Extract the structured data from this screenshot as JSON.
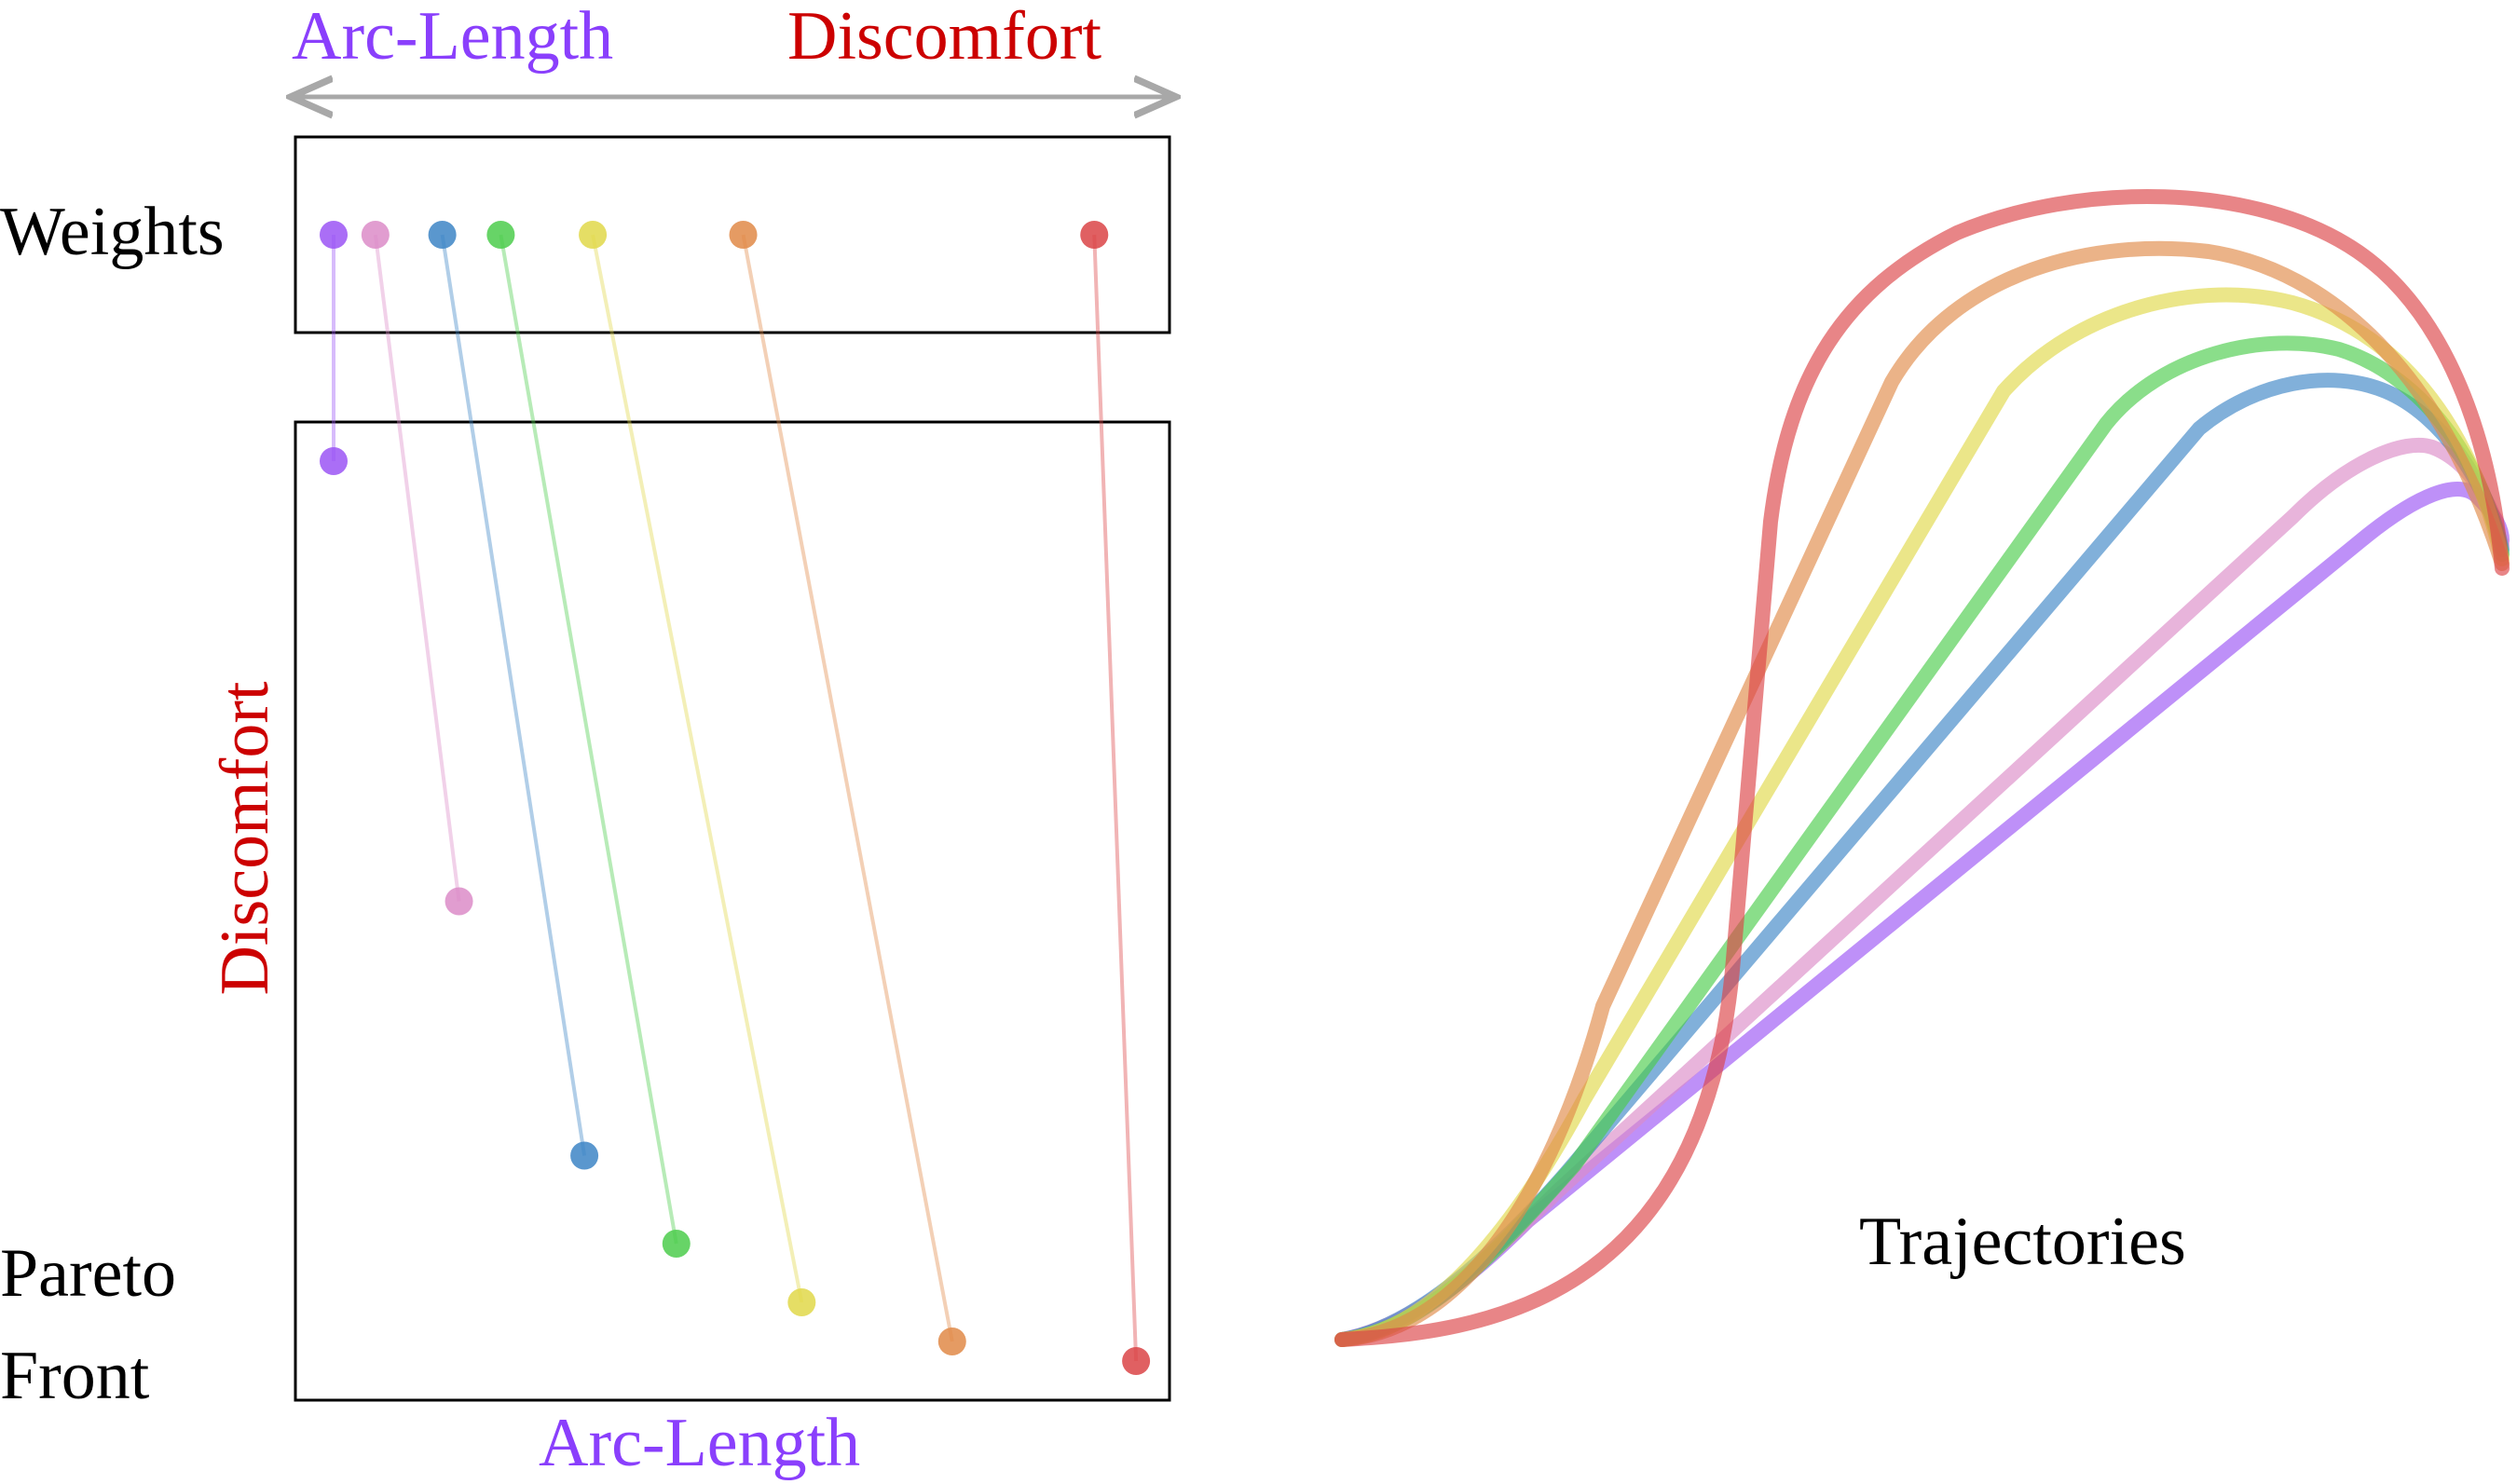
{
  "labels": {
    "top_left_axis": "Arc-Length",
    "top_right_axis": "Discomfort",
    "weights": "Weights",
    "pareto_line1": "Pareto",
    "pareto_line2": "Front",
    "y_axis": "Discomfort",
    "x_axis": "Arc-Length",
    "trajectories": "Trajectories"
  },
  "colors": {
    "arc_length": "#8a3ffc",
    "discomfort": "#cc0000",
    "frame": "#000000",
    "scale_arrow": "#a8a8a8"
  },
  "weights": [
    0.0,
    0.05,
    0.13,
    0.2,
    0.31,
    0.49,
    0.91
  ],
  "pareto_front": [
    {
      "arc_length": 0.0,
      "discomfort": 0.96
    },
    {
      "arc_length": 0.15,
      "discomfort": 0.51
    },
    {
      "arc_length": 0.3,
      "discomfort": 0.25
    },
    {
      "arc_length": 0.41,
      "discomfort": 0.16
    },
    {
      "arc_length": 0.56,
      "discomfort": 0.1
    },
    {
      "arc_length": 0.74,
      "discomfort": 0.06
    },
    {
      "arc_length": 0.96,
      "discomfort": 0.04
    }
  ],
  "trajectory_colors": [
    "#9b55f5",
    "#dc8cc8",
    "#3d85c6",
    "#4ccc4c",
    "#e0d84a",
    "#e08a48",
    "#db4446"
  ]
}
